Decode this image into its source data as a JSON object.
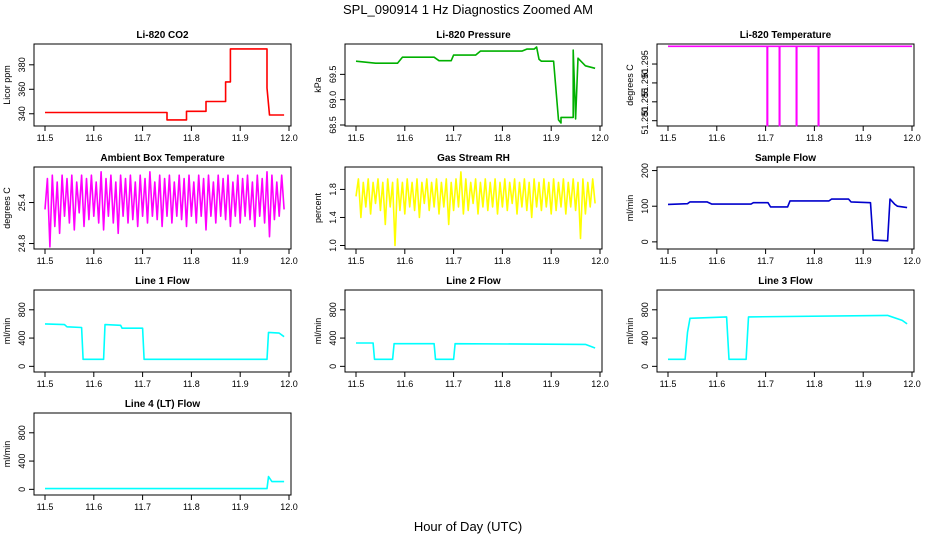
{
  "figure": {
    "title": "SPL_090914  1 Hz Diagnostics Zoomed AM",
    "xlabel": "Hour of Day (UTC)"
  },
  "chart_data": [
    {
      "type": "line",
      "title": "Li-820 CO2",
      "ylabel": "Licor ppm",
      "color": "#ff0000",
      "xlim": [
        11.5,
        12.0
      ],
      "ylim": [
        330,
        397
      ],
      "yticks": [
        "340",
        "360",
        "380"
      ],
      "xticks": [
        "11.5",
        "11.6",
        "11.7",
        "11.8",
        "11.9",
        "12.0"
      ],
      "series": [
        {
          "name": "CO2",
          "x": [
            11.5,
            11.75,
            11.75,
            11.79,
            11.79,
            11.83,
            11.83,
            11.87,
            11.87,
            11.88,
            11.88,
            11.955,
            11.955,
            11.96,
            11.96,
            11.99
          ],
          "y": [
            341,
            341,
            335,
            335,
            342,
            342,
            350,
            350,
            366,
            366,
            393,
            393,
            361,
            339,
            339,
            339
          ]
        }
      ]
    },
    {
      "type": "line",
      "title": "Li-820 Pressure",
      "ylabel": "kPa",
      "color": "#00b000",
      "xlim": [
        11.5,
        12.0
      ],
      "ylim": [
        68.48,
        70.1
      ],
      "yticks": [
        "68.5",
        "69.0",
        "69.5"
      ],
      "xticks": [
        "11.5",
        "11.6",
        "11.7",
        "11.8",
        "11.9",
        "12.0"
      ],
      "series": [
        {
          "name": "Pressure",
          "x": [
            11.5,
            11.53,
            11.54,
            11.585,
            11.595,
            11.66,
            11.67,
            11.695,
            11.7,
            11.745,
            11.755,
            11.84,
            11.85,
            11.865,
            11.87,
            11.875,
            11.88,
            11.905,
            11.915,
            11.92,
            11.92,
            11.945,
            11.945,
            11.95,
            11.955,
            11.97,
            11.99
          ],
          "y": [
            69.76,
            69.73,
            69.72,
            69.72,
            69.84,
            69.84,
            69.77,
            69.77,
            69.88,
            69.88,
            69.96,
            69.96,
            70.0,
            70.0,
            70.04,
            69.8,
            69.76,
            69.76,
            68.6,
            68.54,
            68.65,
            68.65,
            69.98,
            68.62,
            69.82,
            69.67,
            69.62
          ]
        }
      ]
    },
    {
      "type": "line",
      "title": "Li-820 Temperature",
      "ylabel": "degrees C",
      "color": "#ff00ff",
      "xlim": [
        11.5,
        12.0
      ],
      "ylim": [
        51.2786,
        51.3003
      ],
      "yticks": [
        "51.280",
        "51.285",
        "51.290",
        "51.295"
      ],
      "xticks": [
        "11.5",
        "11.6",
        "11.7",
        "11.8",
        "11.9",
        "12.0"
      ],
      "series": [
        {
          "name": "Temperature",
          "x": [
            11.5,
            11.703,
            11.703,
            11.704,
            11.704,
            11.728,
            11.728,
            11.729,
            11.729,
            11.763,
            11.763,
            11.764,
            11.764,
            11.808,
            11.808,
            11.809,
            11.809,
            12.0
          ],
          "y": [
            51.2997,
            51.2997,
            51.2787,
            51.2787,
            51.2997,
            51.2997,
            51.2787,
            51.2787,
            51.2997,
            51.2997,
            51.2787,
            51.2787,
            51.2997,
            51.2997,
            51.2787,
            51.2787,
            51.2997,
            51.2997
          ]
        }
      ]
    },
    {
      "type": "line",
      "title": "Ambient Box Temperature",
      "ylabel": "degrees C",
      "color": "#ff00ff",
      "xlim": [
        11.5,
        12.0
      ],
      "ylim": [
        24.72,
        25.92
      ],
      "yticks": [
        "24.8",
        "25.4"
      ],
      "xticks": [
        "11.5",
        "11.6",
        "11.7",
        "11.8",
        "11.9",
        "12.0"
      ],
      "series": [
        {
          "name": "Ambient",
          "x": [
            11.5,
            11.505,
            11.51,
            11.515,
            11.52,
            11.525,
            11.53,
            11.535,
            11.54,
            11.545,
            11.55,
            11.555,
            11.56,
            11.565,
            11.57,
            11.575,
            11.58,
            11.585,
            11.59,
            11.595,
            11.6,
            11.605,
            11.61,
            11.615,
            11.62,
            11.625,
            11.63,
            11.635,
            11.64,
            11.645,
            11.65,
            11.655,
            11.66,
            11.665,
            11.67,
            11.675,
            11.68,
            11.685,
            11.69,
            11.695,
            11.7,
            11.705,
            11.71,
            11.715,
            11.72,
            11.725,
            11.73,
            11.735,
            11.74,
            11.745,
            11.75,
            11.755,
            11.76,
            11.765,
            11.77,
            11.775,
            11.78,
            11.785,
            11.79,
            11.795,
            11.8,
            11.805,
            11.81,
            11.815,
            11.82,
            11.825,
            11.83,
            11.835,
            11.84,
            11.845,
            11.85,
            11.855,
            11.86,
            11.865,
            11.87,
            11.875,
            11.88,
            11.885,
            11.89,
            11.895,
            11.9,
            11.905,
            11.91,
            11.915,
            11.92,
            11.925,
            11.93,
            11.935,
            11.94,
            11.945,
            11.95,
            11.955,
            11.96,
            11.965,
            11.97,
            11.975,
            11.98,
            11.985,
            11.99
          ],
          "y": [
            25.3,
            25.75,
            24.75,
            25.8,
            25.05,
            25.7,
            24.95,
            25.8,
            25.2,
            25.75,
            25.1,
            25.8,
            25.0,
            25.7,
            25.25,
            25.8,
            25.05,
            25.75,
            25.15,
            25.8,
            25.2,
            25.7,
            25.1,
            25.85,
            25.0,
            25.75,
            25.2,
            25.8,
            25.1,
            25.7,
            24.95,
            25.8,
            25.2,
            25.75,
            25.1,
            25.8,
            25.15,
            25.7,
            25.05,
            25.8,
            25.2,
            25.75,
            25.1,
            25.85,
            25.2,
            25.7,
            25.15,
            25.8,
            25.05,
            25.75,
            25.2,
            25.8,
            25.1,
            25.7,
            25.2,
            25.8,
            25.15,
            25.75,
            25.05,
            25.8,
            25.2,
            25.7,
            25.1,
            25.8,
            25.2,
            25.75,
            25.0,
            25.8,
            25.2,
            25.7,
            25.1,
            25.8,
            25.2,
            25.75,
            25.15,
            25.8,
            25.05,
            25.7,
            25.2,
            25.8,
            25.1,
            25.75,
            25.2,
            25.8,
            25.15,
            25.7,
            25.05,
            25.8,
            25.2,
            25.75,
            25.1,
            25.85,
            24.9,
            25.8,
            25.15,
            25.7,
            25.2,
            25.8,
            25.3
          ]
        }
      ]
    },
    {
      "type": "line",
      "title": "Gas Stream RH",
      "ylabel": "percent",
      "color": "#ffff00",
      "xlim": [
        11.5,
        12.0
      ],
      "ylim": [
        0.95,
        2.12
      ],
      "yticks": [
        "1.0",
        "1.4",
        "1.8"
      ],
      "xticks": [
        "11.5",
        "11.6",
        "11.7",
        "11.8",
        "11.9",
        "12.0"
      ],
      "series": [
        {
          "name": "RH",
          "x": [
            11.5,
            11.505,
            11.51,
            11.515,
            11.52,
            11.525,
            11.53,
            11.535,
            11.54,
            11.545,
            11.55,
            11.555,
            11.56,
            11.565,
            11.57,
            11.575,
            11.58,
            11.585,
            11.59,
            11.595,
            11.6,
            11.605,
            11.61,
            11.615,
            11.62,
            11.625,
            11.63,
            11.635,
            11.64,
            11.645,
            11.65,
            11.655,
            11.66,
            11.665,
            11.67,
            11.675,
            11.68,
            11.685,
            11.69,
            11.695,
            11.7,
            11.705,
            11.71,
            11.715,
            11.72,
            11.725,
            11.73,
            11.735,
            11.74,
            11.745,
            11.75,
            11.755,
            11.76,
            11.765,
            11.77,
            11.775,
            11.78,
            11.785,
            11.79,
            11.795,
            11.8,
            11.805,
            11.81,
            11.815,
            11.82,
            11.825,
            11.83,
            11.835,
            11.84,
            11.845,
            11.85,
            11.855,
            11.86,
            11.865,
            11.87,
            11.875,
            11.88,
            11.885,
            11.89,
            11.895,
            11.9,
            11.905,
            11.91,
            11.915,
            11.92,
            11.925,
            11.93,
            11.935,
            11.94,
            11.945,
            11.95,
            11.955,
            11.96,
            11.965,
            11.97,
            11.975,
            11.98,
            11.985,
            11.99
          ],
          "y": [
            1.7,
            1.95,
            1.4,
            1.9,
            1.55,
            1.95,
            1.45,
            1.9,
            1.6,
            1.95,
            1.5,
            1.9,
            1.3,
            1.95,
            1.55,
            1.9,
            1.0,
            1.95,
            1.5,
            1.9,
            1.45,
            1.95,
            1.55,
            1.9,
            1.5,
            1.95,
            1.4,
            1.9,
            1.6,
            1.95,
            1.5,
            1.9,
            1.55,
            1.95,
            1.45,
            1.9,
            1.55,
            1.95,
            1.3,
            1.9,
            1.5,
            1.95,
            1.55,
            2.05,
            1.45,
            1.95,
            1.5,
            1.9,
            1.6,
            1.95,
            1.45,
            1.9,
            1.55,
            1.95,
            1.5,
            1.9,
            1.55,
            1.95,
            1.45,
            1.9,
            1.55,
            1.95,
            1.5,
            1.9,
            1.6,
            1.95,
            1.45,
            1.9,
            1.55,
            1.95,
            1.5,
            1.9,
            1.4,
            1.95,
            1.55,
            1.9,
            1.5,
            1.95,
            1.55,
            1.9,
            1.45,
            1.95,
            1.5,
            1.9,
            1.55,
            1.95,
            1.45,
            1.9,
            1.55,
            1.95,
            1.5,
            1.9,
            1.1,
            1.95,
            1.45,
            1.9,
            1.55,
            1.95,
            1.6
          ]
        }
      ]
    },
    {
      "type": "line",
      "title": "Sample Flow",
      "ylabel": "ml/min",
      "color": "#0000cc",
      "xlim": [
        11.5,
        12.0
      ],
      "ylim": [
        -20,
        210
      ],
      "yticks": [
        "0",
        "100",
        "200"
      ],
      "xticks": [
        "11.5",
        "11.6",
        "11.7",
        "11.8",
        "11.9",
        "12.0"
      ],
      "series": [
        {
          "name": "Sample Flow",
          "x": [
            11.5,
            11.54,
            11.545,
            11.58,
            11.59,
            11.67,
            11.675,
            11.705,
            11.71,
            11.745,
            11.75,
            11.83,
            11.835,
            11.87,
            11.875,
            11.915,
            11.92,
            11.95,
            11.955,
            11.965,
            11.97,
            11.99
          ],
          "y": [
            105,
            107,
            112,
            112,
            106,
            106,
            110,
            110,
            98,
            98,
            115,
            115,
            120,
            120,
            112,
            110,
            5,
            3,
            120,
            105,
            100,
            96
          ]
        }
      ]
    },
    {
      "type": "line",
      "title": "Line 1 Flow",
      "ylabel": "ml/min",
      "color": "#00ffff",
      "xlim": [
        11.5,
        12.0
      ],
      "ylim": [
        -80,
        1080
      ],
      "yticks": [
        "0",
        "400",
        "800"
      ],
      "xticks": [
        "11.5",
        "11.6",
        "11.7",
        "11.8",
        "11.9",
        "12.0"
      ],
      "series": [
        {
          "name": "Line 1 Flow",
          "x": [
            11.5,
            11.54,
            11.545,
            11.575,
            11.578,
            11.62,
            11.623,
            11.655,
            11.658,
            11.7,
            11.703,
            11.955,
            11.958,
            11.98,
            11.99
          ],
          "y": [
            600,
            590,
            560,
            550,
            100,
            100,
            590,
            580,
            540,
            540,
            100,
            100,
            480,
            470,
            420
          ]
        }
      ]
    },
    {
      "type": "line",
      "title": "Line 2 Flow",
      "ylabel": "ml/min",
      "color": "#00ffff",
      "xlim": [
        11.5,
        12.0
      ],
      "ylim": [
        -80,
        1080
      ],
      "yticks": [
        "0",
        "400",
        "800"
      ],
      "xticks": [
        "11.5",
        "11.6",
        "11.7",
        "11.8",
        "11.9",
        "12.0"
      ],
      "series": [
        {
          "name": "Line 2 Flow",
          "x": [
            11.5,
            11.535,
            11.538,
            11.575,
            11.578,
            11.66,
            11.663,
            11.7,
            11.703,
            11.97,
            11.99
          ],
          "y": [
            330,
            330,
            100,
            100,
            320,
            320,
            100,
            100,
            320,
            310,
            260
          ]
        }
      ]
    },
    {
      "type": "line",
      "title": "Line 3 Flow",
      "ylabel": "ml/min",
      "color": "#00ffff",
      "xlim": [
        11.5,
        12.0
      ],
      "ylim": [
        -80,
        1080
      ],
      "yticks": [
        "0",
        "400",
        "800"
      ],
      "xticks": [
        "11.5",
        "11.6",
        "11.7",
        "11.8",
        "11.9",
        "12.0"
      ],
      "series": [
        {
          "name": "Line 3 Flow",
          "x": [
            11.5,
            11.535,
            11.54,
            11.545,
            11.62,
            11.625,
            11.66,
            11.665,
            11.95,
            11.98,
            11.99
          ],
          "y": [
            100,
            100,
            480,
            680,
            700,
            100,
            100,
            700,
            720,
            650,
            600
          ]
        }
      ]
    },
    {
      "type": "line",
      "title": "Line 4 (LT) Flow",
      "ylabel": "ml/min",
      "color": "#00ffff",
      "xlim": [
        11.5,
        12.0
      ],
      "ylim": [
        -80,
        1080
      ],
      "yticks": [
        "0",
        "400",
        "800"
      ],
      "xticks": [
        "11.5",
        "11.6",
        "11.7",
        "11.8",
        "11.9",
        "12.0"
      ],
      "series": [
        {
          "name": "Line 4 Flow",
          "x": [
            11.5,
            11.955,
            11.958,
            11.965,
            11.99
          ],
          "y": [
            10,
            10,
            180,
            110,
            110
          ]
        }
      ]
    }
  ]
}
